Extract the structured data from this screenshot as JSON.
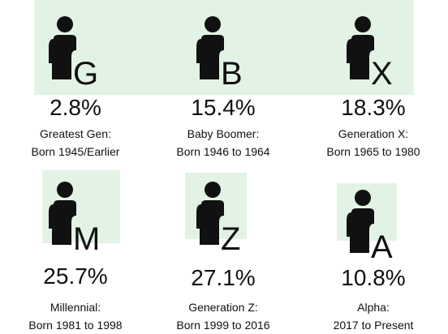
{
  "generations": [
    {
      "letter": "G",
      "percent": "2.8%",
      "name": "Greatest Gen:",
      "born": "Born 1945/Earlier"
    },
    {
      "letter": "B",
      "percent": "15.4%",
      "name": "Baby Boomer:",
      "born": "Born 1946 to 1964"
    },
    {
      "letter": "X",
      "percent": "18.3%",
      "name": "Generation X:",
      "born": "Born 1965 to 1980"
    },
    {
      "letter": "M",
      "percent": "25.7%",
      "name": "Millennial:",
      "born": "Born 1981 to 1998"
    },
    {
      "letter": "Z",
      "percent": "27.1%",
      "name": "Generation Z:",
      "born": "Born 1999 to 2016"
    },
    {
      "letter": "A",
      "percent": "10.8%",
      "name": "Alpha:",
      "born": "2017 to Present"
    }
  ]
}
